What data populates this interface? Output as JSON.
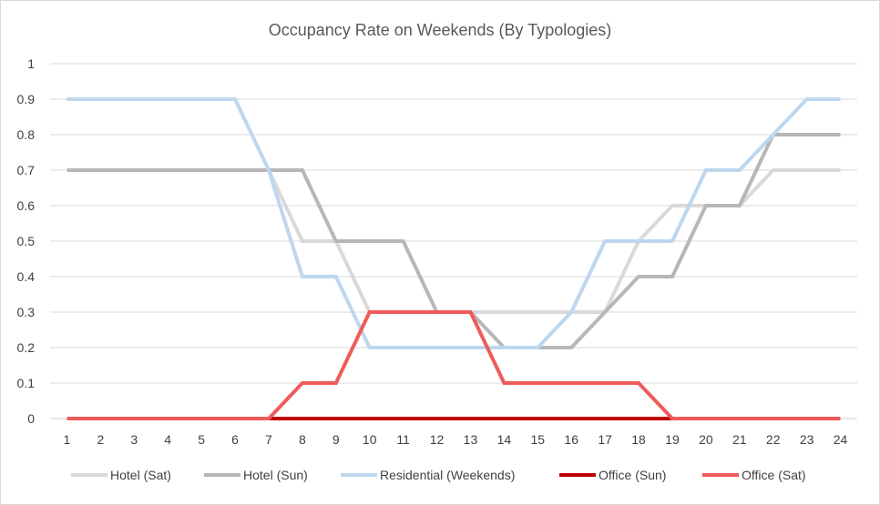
{
  "chart_data": {
    "type": "line",
    "title": "Occupancy Rate on Weekends (By Typologies)",
    "xlabel": "",
    "ylabel": "",
    "x": [
      1,
      2,
      3,
      4,
      5,
      6,
      7,
      8,
      9,
      10,
      11,
      12,
      13,
      14,
      15,
      16,
      17,
      18,
      19,
      20,
      21,
      22,
      23,
      24
    ],
    "y_ticks": [
      "0",
      "0.1",
      "0.2",
      "0.3",
      "0.4",
      "0.5",
      "0.6",
      "0.7",
      "0.8",
      "0.9",
      "1"
    ],
    "ylim": [
      0,
      1
    ],
    "grid": "horizontal",
    "legend_position": "bottom",
    "series": [
      {
        "name": "Hotel (Sat)",
        "color": "#d9d9d9",
        "values": [
          0.7,
          0.7,
          0.7,
          0.7,
          0.7,
          0.7,
          0.7,
          0.5,
          0.5,
          0.3,
          0.3,
          0.3,
          0.3,
          0.3,
          0.3,
          0.3,
          0.3,
          0.5,
          0.6,
          0.6,
          0.6,
          0.7,
          0.7,
          0.7
        ]
      },
      {
        "name": "Hotel (Sun)",
        "color": "#b7b7b7",
        "values": [
          0.7,
          0.7,
          0.7,
          0.7,
          0.7,
          0.7,
          0.7,
          0.7,
          0.5,
          0.5,
          0.5,
          0.3,
          0.3,
          0.2,
          0.2,
          0.2,
          0.3,
          0.4,
          0.4,
          0.6,
          0.6,
          0.8,
          0.8,
          0.8
        ]
      },
      {
        "name": "Residential (Weekends)",
        "color": "#bdd7ee",
        "values": [
          0.9,
          0.9,
          0.9,
          0.9,
          0.9,
          0.9,
          0.7,
          0.4,
          0.4,
          0.2,
          0.2,
          0.2,
          0.2,
          0.2,
          0.2,
          0.3,
          0.5,
          0.5,
          0.5,
          0.7,
          0.7,
          0.8,
          0.9,
          0.9
        ]
      },
      {
        "name": "Office (Sun)",
        "color": "#c00000",
        "values": [
          0,
          0,
          0,
          0,
          0,
          0,
          0,
          0,
          0,
          0,
          0,
          0,
          0,
          0,
          0,
          0,
          0,
          0,
          0,
          0,
          0,
          0,
          0,
          0
        ]
      },
      {
        "name": "Office (Sat)",
        "color": "#ef5b5b",
        "values": [
          0,
          0,
          0,
          0,
          0,
          0,
          0,
          0.1,
          0.1,
          0.3,
          0.3,
          0.3,
          0.3,
          0.1,
          0.1,
          0.1,
          0.1,
          0.1,
          0,
          0,
          0,
          0,
          0,
          0
        ]
      }
    ]
  }
}
